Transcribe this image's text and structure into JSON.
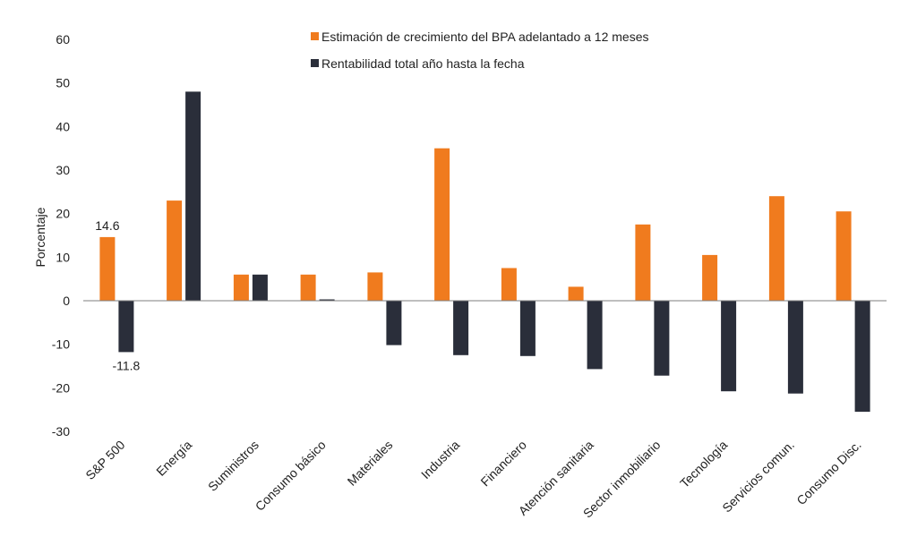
{
  "chart_data": {
    "type": "bar",
    "categories": [
      "S&P 500",
      "Energía",
      "Suministros",
      "Consumo básico",
      "Materiales",
      "Industria",
      "Financiero",
      "Atención sanitaria",
      "Sector inmobiliario",
      "Tecnología",
      "Servicios comun.",
      "Consumo Disc."
    ],
    "series": [
      {
        "name": "Estimación de crecimiento del BPA adelantado a 12 meses",
        "color": "#F07B1E",
        "values": [
          14.6,
          23,
          6,
          6,
          6.5,
          35,
          7.5,
          3.2,
          17.5,
          10.5,
          24,
          20.5
        ]
      },
      {
        "name": "Rentabilidad total año hasta la fecha",
        "color": "#2A2E3A",
        "values": [
          -11.8,
          48,
          6,
          0.3,
          -10.2,
          -12.5,
          -12.7,
          -15.7,
          -17.2,
          -20.8,
          -21.3,
          -25.5
        ]
      }
    ],
    "data_labels": [
      {
        "series": 0,
        "index": 0,
        "text": "14.6"
      },
      {
        "series": 1,
        "index": 0,
        "text": "-11.8"
      }
    ],
    "ylabel": "Porcentaje",
    "ylim": [
      -30,
      60
    ],
    "yticks": [
      60,
      50,
      40,
      30,
      20,
      10,
      0,
      -10,
      -20,
      -30
    ],
    "grid": false,
    "legend_position": "top-center"
  }
}
